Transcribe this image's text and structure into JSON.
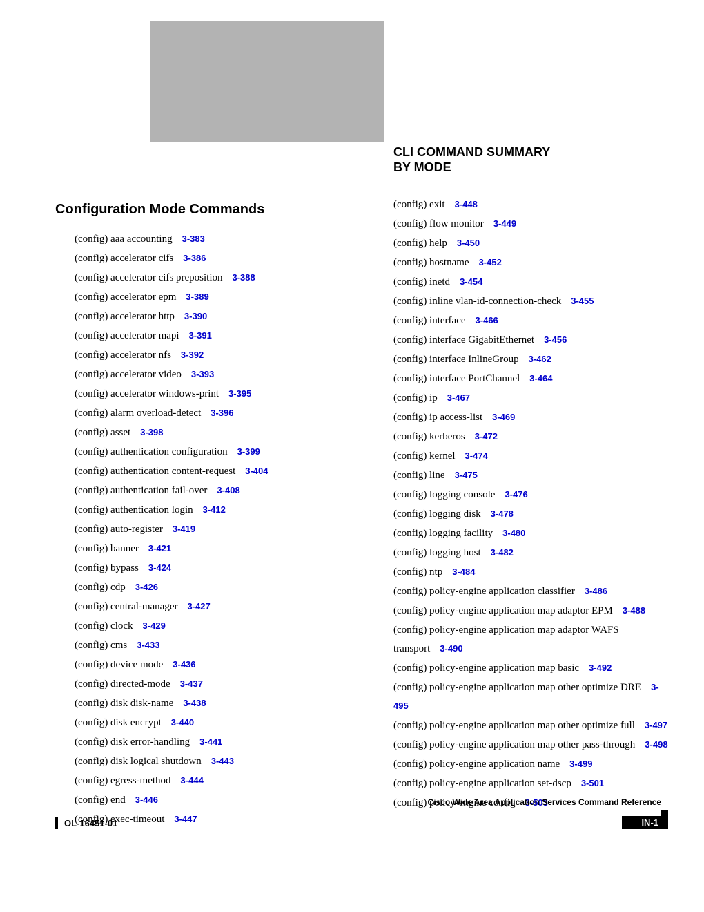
{
  "title_line1": "CLI COMMAND SUMMARY",
  "title_line2": "BY MODE",
  "section_heading": "Configuration Mode Commands",
  "left_entries": [
    {
      "cmd": "(config) aaa accounting",
      "pref": "3-383"
    },
    {
      "cmd": "(config) accelerator cifs",
      "pref": "3-386"
    },
    {
      "cmd": "(config) accelerator cifs preposition",
      "pref": "3-388"
    },
    {
      "cmd": "(config) accelerator epm",
      "pref": "3-389"
    },
    {
      "cmd": "(config) accelerator http",
      "pref": "3-390"
    },
    {
      "cmd": "(config) accelerator mapi",
      "pref": "3-391"
    },
    {
      "cmd": "(config) accelerator nfs",
      "pref": "3-392"
    },
    {
      "cmd": "(config) accelerator video",
      "pref": "3-393"
    },
    {
      "cmd": "(config) accelerator windows-print",
      "pref": "3-395"
    },
    {
      "cmd": "(config) alarm overload-detect",
      "pref": "3-396"
    },
    {
      "cmd": "(config) asset",
      "pref": "3-398"
    },
    {
      "cmd": "(config) authentication configuration",
      "pref": "3-399"
    },
    {
      "cmd": "(config) authentication content-request",
      "pref": "3-404"
    },
    {
      "cmd": "(config) authentication fail-over",
      "pref": "3-408"
    },
    {
      "cmd": "(config) authentication login",
      "pref": "3-412"
    },
    {
      "cmd": "(config) auto-register",
      "pref": "3-419"
    },
    {
      "cmd": "(config) banner",
      "pref": "3-421"
    },
    {
      "cmd": "(config) bypass",
      "pref": "3-424"
    },
    {
      "cmd": "(config) cdp",
      "pref": "3-426"
    },
    {
      "cmd": "(config) central-manager",
      "pref": "3-427"
    },
    {
      "cmd": "(config) clock",
      "pref": "3-429"
    },
    {
      "cmd": "(config) cms",
      "pref": "3-433"
    },
    {
      "cmd": "(config) device mode",
      "pref": "3-436"
    },
    {
      "cmd": "(config) directed-mode",
      "pref": "3-437"
    },
    {
      "cmd": "(config) disk disk-name",
      "pref": "3-438"
    },
    {
      "cmd": "(config) disk encrypt",
      "pref": "3-440"
    },
    {
      "cmd": "(config) disk error-handling",
      "pref": "3-441"
    },
    {
      "cmd": "(config) disk logical shutdown",
      "pref": "3-443"
    },
    {
      "cmd": "(config) egress-method",
      "pref": "3-444"
    },
    {
      "cmd": "(config) end",
      "pref": "3-446"
    },
    {
      "cmd": "(config) exec-timeout",
      "pref": "3-447"
    }
  ],
  "right_entries": [
    {
      "cmd": "(config) exit",
      "pref": "3-448"
    },
    {
      "cmd": "(config) flow monitor",
      "pref": "3-449"
    },
    {
      "cmd": "(config) help",
      "pref": "3-450"
    },
    {
      "cmd": "(config) hostname",
      "pref": "3-452"
    },
    {
      "cmd": "(config) inetd",
      "pref": "3-454"
    },
    {
      "cmd": "(config) inline vlan-id-connection-check",
      "pref": "3-455"
    },
    {
      "cmd": "(config) interface",
      "pref": "3-466"
    },
    {
      "cmd": "(config) interface GigabitEthernet",
      "pref": "3-456"
    },
    {
      "cmd": "(config) interface InlineGroup",
      "pref": "3-462"
    },
    {
      "cmd": "(config) interface PortChannel",
      "pref": "3-464"
    },
    {
      "cmd": "(config) ip",
      "pref": "3-467"
    },
    {
      "cmd": "(config) ip access-list",
      "pref": "3-469"
    },
    {
      "cmd": "(config) kerberos",
      "pref": "3-472"
    },
    {
      "cmd": "(config) kernel",
      "pref": "3-474"
    },
    {
      "cmd": "(config) line",
      "pref": "3-475"
    },
    {
      "cmd": "(config) logging console",
      "pref": "3-476"
    },
    {
      "cmd": "(config) logging disk",
      "pref": "3-478"
    },
    {
      "cmd": "(config) logging facility",
      "pref": "3-480"
    },
    {
      "cmd": "(config) logging host",
      "pref": "3-482"
    },
    {
      "cmd": "(config) ntp",
      "pref": "3-484"
    },
    {
      "cmd": "(config) policy-engine application classifier",
      "pref": "3-486"
    },
    {
      "cmd": "(config) policy-engine application map adaptor EPM",
      "pref": "3-488"
    },
    {
      "cmd": "(config) policy-engine application map adaptor WAFS transport",
      "pref": "3-490"
    },
    {
      "cmd": "(config) policy-engine application map basic",
      "pref": "3-492"
    },
    {
      "cmd": "(config) policy-engine application map other optimize DRE",
      "pref": "3-495"
    },
    {
      "cmd": "(config) policy-engine application map other optimize full",
      "pref": "3-497"
    },
    {
      "cmd": "(config) policy-engine application map other pass-through",
      "pref": "3-498"
    },
    {
      "cmd": "(config) policy-engine application name",
      "pref": "3-499"
    },
    {
      "cmd": "(config) policy-engine application set-dscp",
      "pref": "3-501"
    },
    {
      "cmd": "(config) policy-engine config",
      "pref": "3-503"
    }
  ],
  "footer_right_title": "Cisco Wide Area Application Services Command Reference",
  "footer_pagenum": "IN-1",
  "footer_left": "OL-16451-01"
}
